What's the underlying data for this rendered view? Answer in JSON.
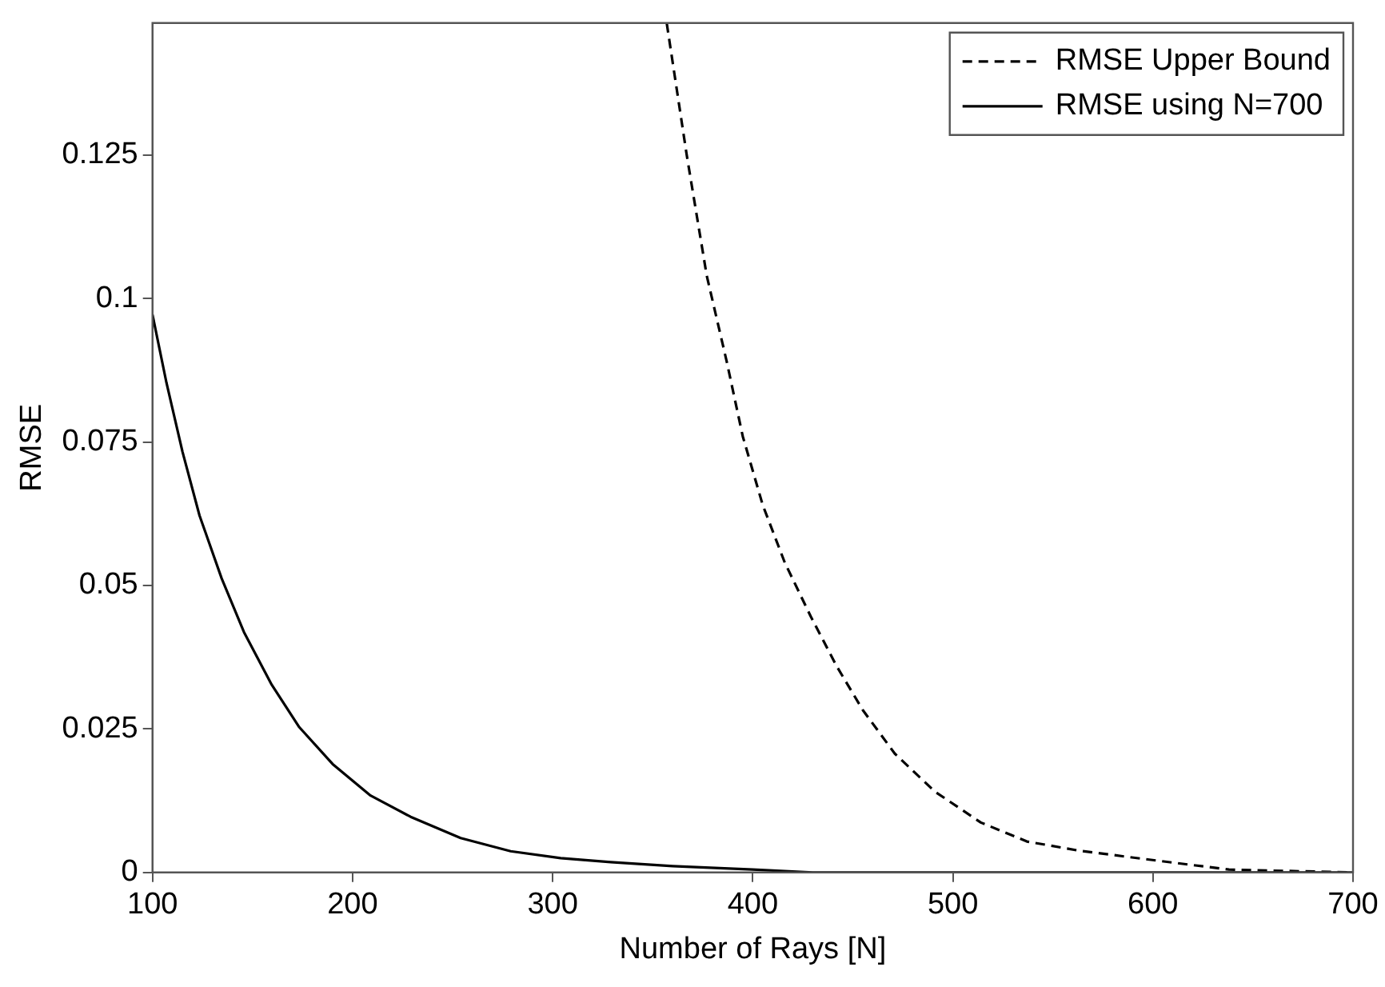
{
  "chart_data": {
    "type": "line",
    "xlabel": "Number of Rays [N]",
    "ylabel": "RMSE",
    "xlim": [
      100,
      700
    ],
    "xticks": [
      100,
      200,
      300,
      400,
      500,
      600,
      700
    ],
    "ylim": [
      0,
      0.148
    ],
    "yticks": [
      0,
      0.025,
      0.05,
      0.075,
      0.1,
      0.125
    ],
    "grid": false,
    "legend": "top right",
    "marker": "none",
    "series": [
      {
        "name": "RMSE Upper Bound",
        "color": "#000000",
        "line_style": "dashed",
        "x": [
          357,
          367,
          377,
          387,
          395,
          405,
          416,
          429,
          442,
          455,
          471,
          491,
          514,
          537,
          563,
          599,
          638,
          700
        ],
        "values": [
          0.148,
          0.125,
          0.104,
          0.089,
          0.076,
          0.064,
          0.054,
          0.0446,
          0.0359,
          0.0283,
          0.0207,
          0.0141,
          0.0087,
          0.0054,
          0.0038,
          0.0022,
          0.0005,
          0
        ]
      },
      {
        "name": "RMSE using N=700",
        "color": "#000000",
        "line_style": "solid",
        "x": [
          100,
          107,
          115,
          123.5,
          134.6,
          145.7,
          159.6,
          173.4,
          190,
          209,
          229,
          254,
          279,
          304,
          329,
          360,
          400,
          430,
          700
        ],
        "values": [
          0.0972,
          0.0853,
          0.0733,
          0.0622,
          0.0512,
          0.0419,
          0.0327,
          0.0253,
          0.0189,
          0.0134,
          0.0097,
          0.006,
          0.0037,
          0.0025,
          0.0018,
          0.0011,
          0.0005,
          0,
          0
        ]
      }
    ]
  }
}
